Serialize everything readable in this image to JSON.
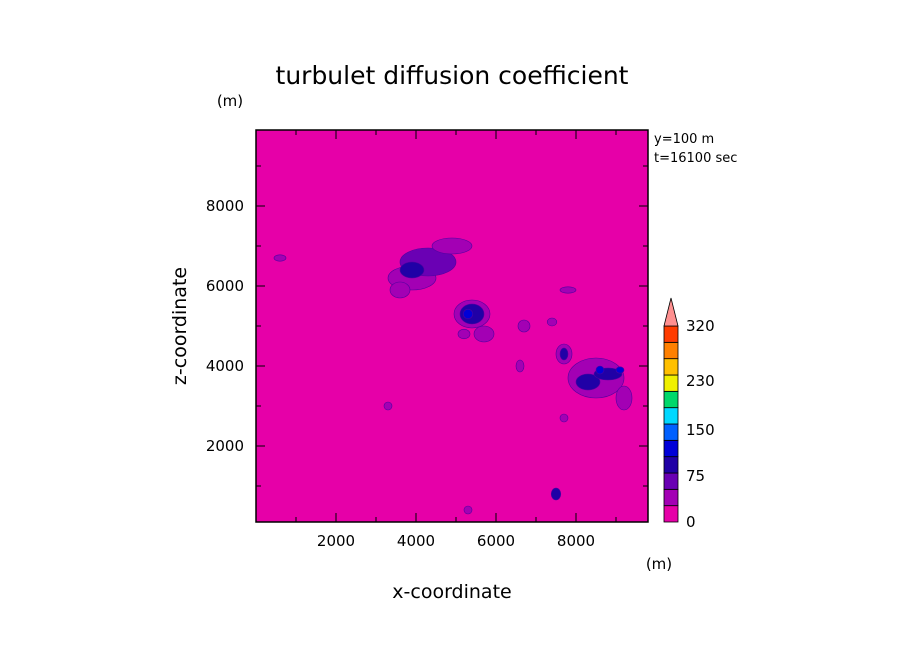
{
  "chart_data": {
    "type": "heatmap",
    "title": "turbulet diffusion coefficient",
    "xlabel": "x-coordinate",
    "ylabel": "z-coordinate",
    "x_unit": "(m)",
    "y_unit": "(m)",
    "xlim": [
      0,
      9800
    ],
    "ylim": [
      100,
      9900
    ],
    "x_ticks": [
      2000,
      4000,
      6000,
      8000
    ],
    "y_ticks": [
      2000,
      4000,
      6000,
      8000
    ],
    "x_tick_labels": [
      "2000",
      "4000",
      "6000",
      "8000"
    ],
    "y_tick_labels": [
      "2000",
      "4000",
      "6000",
      "8000"
    ],
    "annotations": [
      "y=100 m",
      "t=16100 sec"
    ],
    "background_value": 0,
    "colorbar": {
      "levels": [
        0,
        25,
        50,
        75,
        100,
        125,
        150,
        175,
        200,
        230,
        260,
        290,
        320
      ],
      "colors": [
        "#e600a8",
        "#a300b4",
        "#6a00b4",
        "#2000a6",
        "#0000d8",
        "#0060ff",
        "#00d8ff",
        "#00d86a",
        "#f0f000",
        "#ffc000",
        "#ff8000",
        "#ff3c00",
        "#e60000"
      ],
      "tick_labels": [
        "0",
        "75",
        "150",
        "230",
        "320"
      ],
      "tick_values": [
        0,
        75,
        150,
        230,
        320
      ],
      "extend_color": "#ff9090"
    },
    "features": [
      {
        "x": 3900,
        "z": 6200,
        "value": 40,
        "rx": 600,
        "rz": 300
      },
      {
        "x": 4300,
        "z": 6600,
        "value": 50,
        "rx": 700,
        "rz": 350
      },
      {
        "x": 4900,
        "z": 7000,
        "value": 30,
        "rx": 500,
        "rz": 200
      },
      {
        "x": 3900,
        "z": 6400,
        "value": 90,
        "rx": 300,
        "rz": 200
      },
      {
        "x": 3600,
        "z": 5900,
        "value": 35,
        "rx": 250,
        "rz": 200
      },
      {
        "x": 5400,
        "z": 5300,
        "value": 40,
        "rx": 450,
        "rz": 350
      },
      {
        "x": 5400,
        "z": 5300,
        "value": 80,
        "rx": 300,
        "rz": 250
      },
      {
        "x": 5300,
        "z": 5300,
        "value": 110,
        "rx": 120,
        "rz": 120
      },
      {
        "x": 5700,
        "z": 4800,
        "value": 30,
        "rx": 250,
        "rz": 200
      },
      {
        "x": 5200,
        "z": 4800,
        "value": 30,
        "rx": 150,
        "rz": 120
      },
      {
        "x": 6700,
        "z": 5000,
        "value": 30,
        "rx": 150,
        "rz": 150
      },
      {
        "x": 7400,
        "z": 5100,
        "value": 30,
        "rx": 120,
        "rz": 100
      },
      {
        "x": 7800,
        "z": 5900,
        "value": 30,
        "rx": 200,
        "rz": 80
      },
      {
        "x": 7700,
        "z": 4300,
        "value": 40,
        "rx": 200,
        "rz": 250
      },
      {
        "x": 7700,
        "z": 4300,
        "value": 80,
        "rx": 100,
        "rz": 150
      },
      {
        "x": 8500,
        "z": 3700,
        "value": 40,
        "rx": 700,
        "rz": 500
      },
      {
        "x": 8300,
        "z": 3600,
        "value": 80,
        "rx": 300,
        "rz": 200
      },
      {
        "x": 8800,
        "z": 3800,
        "value": 80,
        "rx": 350,
        "rz": 150
      },
      {
        "x": 9100,
        "z": 3900,
        "value": 120,
        "rx": 100,
        "rz": 80
      },
      {
        "x": 8600,
        "z": 3900,
        "value": 100,
        "rx": 100,
        "rz": 100
      },
      {
        "x": 9200,
        "z": 3200,
        "value": 30,
        "rx": 200,
        "rz": 300
      },
      {
        "x": 7500,
        "z": 800,
        "value": 80,
        "rx": 120,
        "rz": 150
      },
      {
        "x": 6600,
        "z": 4000,
        "value": 30,
        "rx": 100,
        "rz": 150
      },
      {
        "x": 3300,
        "z": 3000,
        "value": 30,
        "rx": 100,
        "rz": 100
      },
      {
        "x": 7700,
        "z": 2700,
        "value": 30,
        "rx": 100,
        "rz": 100
      },
      {
        "x": 5300,
        "z": 400,
        "value": 30,
        "rx": 100,
        "rz": 100
      },
      {
        "x": 600,
        "z": 6700,
        "value": 30,
        "rx": 150,
        "rz": 80
      }
    ]
  }
}
